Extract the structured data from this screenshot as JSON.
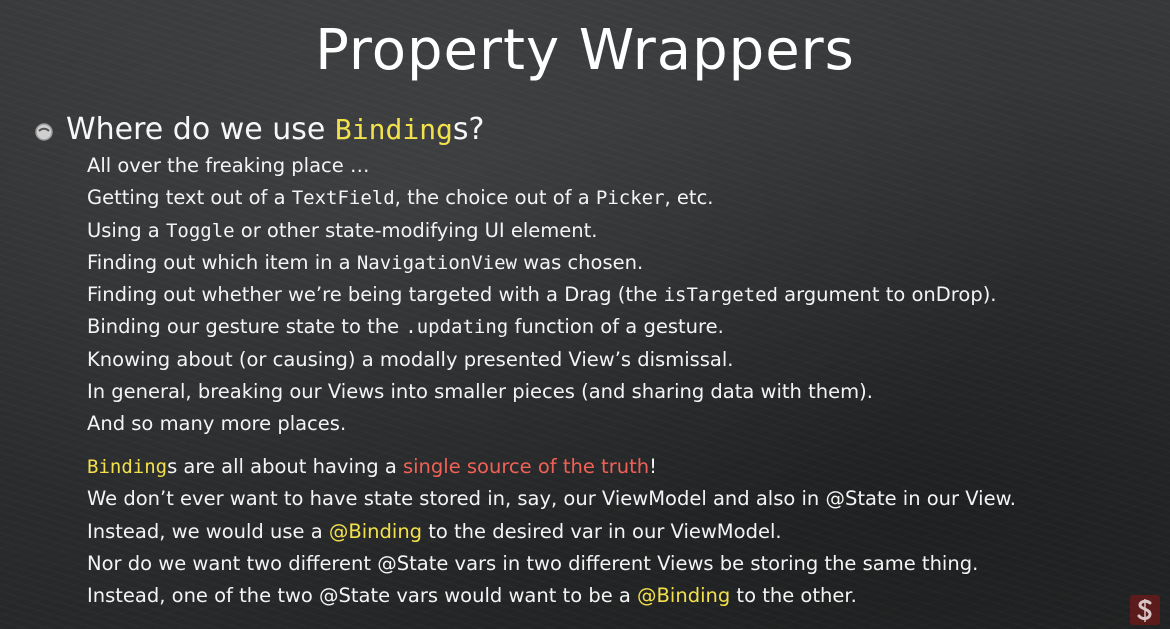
{
  "title": "Property Wrappers",
  "heading": {
    "prefix": "Where do we use ",
    "highlight": "Binding",
    "suffix": "s?"
  },
  "uses": [
    {
      "a": "All over the freaking place …"
    },
    {
      "a": "Getting text out of a ",
      "c1": "TextField",
      "b": ", the choice out of a ",
      "c2": "Picker",
      "d": ", etc."
    },
    {
      "a": "Using a ",
      "c1": "Toggle",
      "b": " or other state-modifying UI element."
    },
    {
      "a": "Finding out which item in a ",
      "c1": "NavigationView",
      "b": " was chosen."
    },
    {
      "a": "Finding out whether we’re being targeted with a Drag (the ",
      "c1": "isTargeted",
      "b": " argument to onDrop)."
    },
    {
      "a": "Binding our gesture state to the ",
      "c1": ".updating",
      "b": " function of a gesture."
    },
    {
      "a": "Knowing about (or causing) a modally presented View’s dismissal."
    },
    {
      "a": "In general, breaking our Views into smaller pieces (and sharing data with them)."
    },
    {
      "a": "And so many more places."
    }
  ],
  "truth": {
    "l1_binding": "Binding",
    "l1_a": "s are all about having a ",
    "l1_red": "single source of the truth",
    "l1_b": "!",
    "l2": "We don’t ever want to have state stored in, say, our ViewModel and also in @State in our View.",
    "l3_a": "Instead, we would use a ",
    "l3_hl": "@Binding",
    "l3_b": " to the desired var in our ViewModel.",
    "l4": "Nor do we want two different @State vars in two different Views be storing the same thing.",
    "l5_a": "Instead, one of the two @State vars would want to be a ",
    "l5_hl": "@Binding",
    "l5_b": " to the other."
  },
  "icons": {
    "bullet": "bullet-circle-icon",
    "logo": "stanford-logo-icon"
  },
  "colors": {
    "highlight_yellow": "#f2e14b",
    "highlight_red": "#f26156",
    "background": "#2f3133",
    "logo_red": "#8c1515"
  }
}
